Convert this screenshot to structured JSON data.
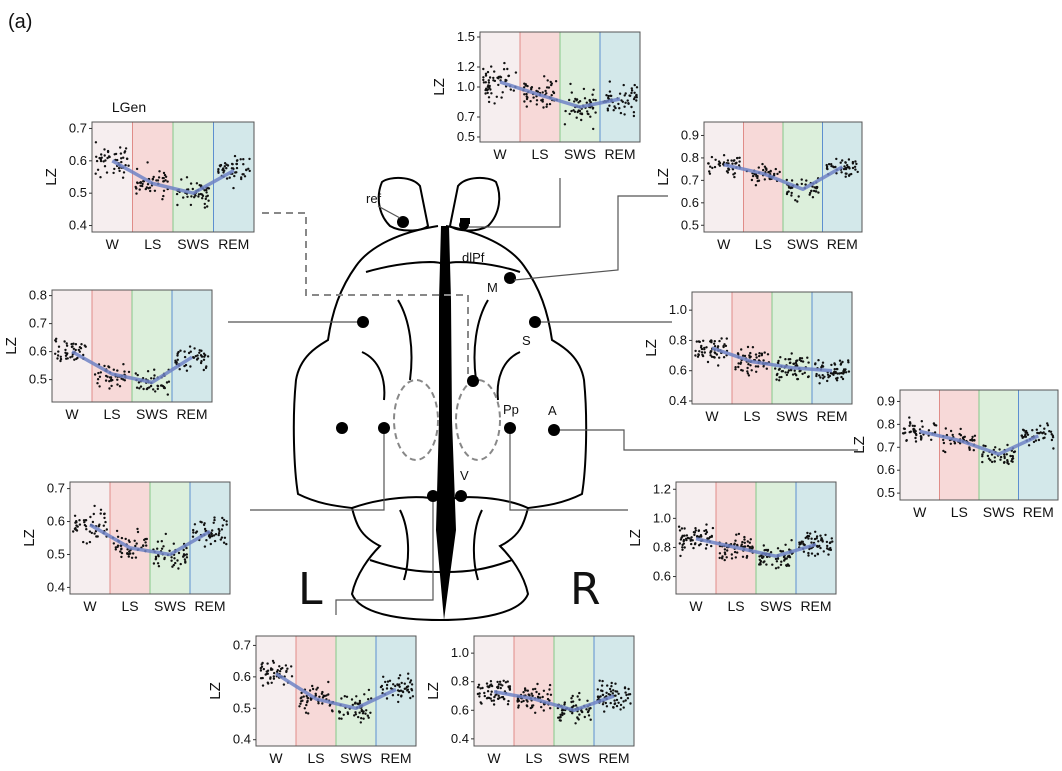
{
  "panel_label": "(a)",
  "hemisphere_left": "L",
  "hemisphere_right": "R",
  "region_labels": {
    "ref": "ref",
    "dlpf": "dlPf",
    "m": "M",
    "s": "S",
    "pp": "Pp",
    "a": "A",
    "v": "V"
  },
  "colors": {
    "W": "#f6eeef",
    "LS": "#f7d9d8",
    "SWS": "#dcefdb",
    "REM": "#d3e8ea",
    "fit_line": "#6f82c6",
    "points": "#111111"
  },
  "chart_data": [
    {
      "type": "scatter",
      "id": "lgen",
      "title": "LGen",
      "ylabel": "LZ",
      "categories": [
        "W",
        "LS",
        "SWS",
        "REM"
      ],
      "ylim": [
        0.38,
        0.72
      ],
      "yticks": [
        "0.7",
        "0.6",
        "0.5",
        "0.4"
      ],
      "yticks_values": [
        0.7,
        0.6,
        0.5,
        0.4
      ],
      "trend": [
        0.6,
        0.53,
        0.5,
        0.57
      ],
      "spread": 0.06,
      "n_points": 50
    },
    {
      "type": "scatter",
      "id": "dlpf",
      "title": "",
      "ylabel": "LZ",
      "categories": [
        "W",
        "LS",
        "SWS",
        "REM"
      ],
      "ylim": [
        0.45,
        1.55
      ],
      "yticks": [
        "1.5",
        "1.2",
        "1.0",
        "0.7",
        "0.5"
      ],
      "yticks_values": [
        1.5,
        1.2,
        1.0,
        0.7,
        0.5
      ],
      "trend": [
        1.05,
        0.92,
        0.8,
        0.88
      ],
      "spread": 0.22,
      "n_points": 55
    },
    {
      "type": "scatter",
      "id": "m",
      "title": "",
      "ylabel": "LZ",
      "categories": [
        "W",
        "LS",
        "SWS",
        "REM"
      ],
      "ylim": [
        0.47,
        0.96
      ],
      "yticks": [
        "0.9",
        "0.8",
        "0.7",
        "0.6",
        "0.5"
      ],
      "yticks_values": [
        0.9,
        0.8,
        0.7,
        0.6,
        0.5
      ],
      "trend": [
        0.77,
        0.73,
        0.66,
        0.76
      ],
      "spread": 0.06,
      "n_points": 45
    },
    {
      "type": "scatter",
      "id": "lmid",
      "title": "",
      "ylabel": "LZ",
      "categories": [
        "W",
        "LS",
        "SWS",
        "REM"
      ],
      "ylim": [
        0.42,
        0.82
      ],
      "yticks": [
        "0.8",
        "0.7",
        "0.6",
        "0.5"
      ],
      "yticks_values": [
        0.8,
        0.7,
        0.6,
        0.5
      ],
      "trend": [
        0.6,
        0.52,
        0.49,
        0.58
      ],
      "spread": 0.06,
      "n_points": 45
    },
    {
      "type": "scatter",
      "id": "s",
      "title": "",
      "ylabel": "LZ",
      "categories": [
        "W",
        "LS",
        "SWS",
        "REM"
      ],
      "ylim": [
        0.38,
        1.12
      ],
      "yticks": [
        "1.0",
        "0.8",
        "0.6",
        "0.4"
      ],
      "yticks_values": [
        1.0,
        0.8,
        0.6,
        0.4
      ],
      "trend": [
        0.75,
        0.66,
        0.62,
        0.6
      ],
      "spread": 0.12,
      "n_points": 60
    },
    {
      "type": "scatter",
      "id": "a",
      "title": "",
      "ylabel": "LZ",
      "categories": [
        "W",
        "LS",
        "SWS",
        "REM"
      ],
      "ylim": [
        0.47,
        0.95
      ],
      "yticks": [
        "0.9",
        "0.8",
        "0.7",
        "0.6",
        "0.5"
      ],
      "yticks_values": [
        0.9,
        0.8,
        0.7,
        0.6,
        0.5
      ],
      "trend": [
        0.77,
        0.73,
        0.67,
        0.75
      ],
      "spread": 0.06,
      "n_points": 45
    },
    {
      "type": "scatter",
      "id": "llow",
      "title": "",
      "ylabel": "LZ",
      "categories": [
        "W",
        "LS",
        "SWS",
        "REM"
      ],
      "ylim": [
        0.38,
        0.72
      ],
      "yticks": [
        "0.7",
        "0.6",
        "0.5",
        "0.4"
      ],
      "yticks_values": [
        0.7,
        0.6,
        0.5,
        0.4
      ],
      "trend": [
        0.59,
        0.52,
        0.5,
        0.57
      ],
      "spread": 0.06,
      "n_points": 50
    },
    {
      "type": "scatter",
      "id": "pp",
      "title": "",
      "ylabel": "LZ",
      "categories": [
        "W",
        "LS",
        "SWS",
        "REM"
      ],
      "ylim": [
        0.48,
        1.25
      ],
      "yticks": [
        "1.2",
        "1.0",
        "0.8",
        "0.6"
      ],
      "yticks_values": [
        1.2,
        1.0,
        0.8,
        0.6
      ],
      "trend": [
        0.86,
        0.8,
        0.74,
        0.82
      ],
      "spread": 0.11,
      "n_points": 65
    },
    {
      "type": "scatter",
      "id": "vl",
      "title": "",
      "ylabel": "LZ",
      "categories": [
        "W",
        "LS",
        "SWS",
        "REM"
      ],
      "ylim": [
        0.38,
        0.73
      ],
      "yticks": [
        "0.7",
        "0.6",
        "0.5",
        "0.4"
      ],
      "yticks_values": [
        0.7,
        0.6,
        0.5,
        0.4
      ],
      "trend": [
        0.61,
        0.53,
        0.5,
        0.56
      ],
      "spread": 0.06,
      "n_points": 50
    },
    {
      "type": "scatter",
      "id": "vr",
      "title": "",
      "ylabel": "LZ",
      "categories": [
        "W",
        "LS",
        "SWS",
        "REM"
      ],
      "ylim": [
        0.35,
        1.12
      ],
      "yticks": [
        "1.0",
        "0.8",
        "0.6",
        "0.4"
      ],
      "yticks_values": [
        1.0,
        0.8,
        0.6,
        0.4
      ],
      "trend": [
        0.73,
        0.68,
        0.6,
        0.7
      ],
      "spread": 0.13,
      "n_points": 65
    }
  ]
}
